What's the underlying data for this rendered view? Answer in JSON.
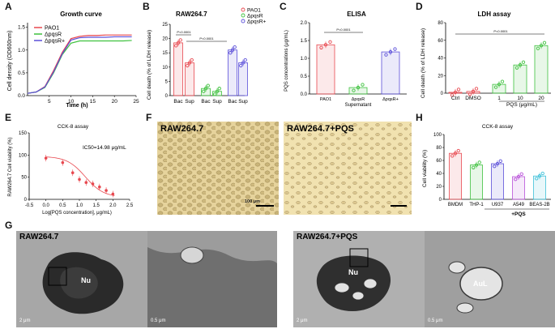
{
  "panels": {
    "A": {
      "letter": "A",
      "title": "Growth curve",
      "ylabel": "Cell density (OD600nm)",
      "xlabel": "Time (h)",
      "legend": [
        "PAO1",
        "ΔpqsR",
        "ΔpqsR+"
      ],
      "xticks": [
        "5",
        "10",
        "15",
        "20",
        "25"
      ],
      "yticks": [
        "0.0",
        "0.5",
        "1.0",
        "1.5"
      ]
    },
    "B": {
      "letter": "B",
      "title": "RAW264.7",
      "ylabel": "Cell death (% of LDH release)",
      "legend": [
        "PAO1",
        "ΔpqsR",
        "ΔpqsR+"
      ],
      "pvalue1": "P<0.0001",
      "pvalue2": "P<0.0001",
      "yticks": [
        "0",
        "5",
        "10",
        "15",
        "20",
        "25"
      ]
    },
    "C": {
      "letter": "C",
      "title": "ELISA",
      "ylabel": "PQS concentrations (μg/mL)",
      "xlabel": "Supernatant",
      "pvalue": "P<0.0001",
      "yticks": [
        "0.0",
        "0.5",
        "1.0",
        "1.5",
        "2.0"
      ]
    },
    "D": {
      "letter": "D",
      "title": "LDH assay",
      "ylabel": "Cell death (% of LDH release)",
      "xlabel": "PQS (μg/mL)",
      "pvalue": "P<0.0001",
      "yticks": [
        "0",
        "20",
        "40",
        "60",
        "80"
      ]
    },
    "E": {
      "letter": "E",
      "title": "CCK-8 assay",
      "ylabel": "RAW264.7 Cell viability (%)",
      "xlabel": "Log[PQS concentration], μg/mL)",
      "annotation": "IC50=14.98 μg/mL",
      "xticks": [
        "-0.5",
        "0.0",
        "0.5",
        "1.0",
        "1.5",
        "2.0",
        "2.5"
      ],
      "yticks": [
        "0",
        "50",
        "100",
        "150"
      ]
    },
    "F": {
      "letter": "F",
      "left_label": "RAW264.7",
      "right_label": "RAW264.7+PQS",
      "scale": "100 μm"
    },
    "H": {
      "letter": "H",
      "title": "CCK-8 assay",
      "ylabel": "Cell viability (%)",
      "xlabel": "+PQS",
      "yticks": [
        "0",
        "20",
        "40",
        "60",
        "80",
        "100"
      ]
    },
    "G": {
      "letter": "G",
      "left_label": "RAW264.7",
      "right_label": "RAW264.7+PQS",
      "nu": "Nu",
      "aul": "AuL",
      "scale_a": "2 μm",
      "scale_b": "0.5 μm"
    }
  },
  "chart_data": [
    {
      "type": "line",
      "panel": "A",
      "title": "Growth curve",
      "xlabel": "Time (h)",
      "ylabel": "Cell density (OD600nm)",
      "xlim": [
        0,
        25
      ],
      "ylim": [
        0,
        1.6
      ],
      "series": [
        {
          "name": "PAO1",
          "color": "#e8484f",
          "x": [
            0,
            2,
            4,
            6,
            8,
            10,
            12,
            14,
            16,
            18,
            20,
            22,
            24
          ],
          "values": [
            0.05,
            0.08,
            0.2,
            0.55,
            0.95,
            1.25,
            1.3,
            1.32,
            1.32,
            1.33,
            1.33,
            1.33,
            1.33
          ]
        },
        {
          "name": "ΔpqsR",
          "color": "#3ec13e",
          "x": [
            0,
            2,
            4,
            6,
            8,
            10,
            12,
            14,
            16,
            18,
            20,
            22,
            24
          ],
          "values": [
            0.05,
            0.08,
            0.18,
            0.5,
            0.9,
            1.15,
            1.2,
            1.2,
            1.2,
            1.2,
            1.2,
            1.2,
            1.21
          ]
        },
        {
          "name": "ΔpqsR+",
          "color": "#5b4fd9",
          "x": [
            0,
            2,
            4,
            6,
            8,
            10,
            12,
            14,
            16,
            18,
            20,
            22,
            24
          ],
          "values": [
            0.05,
            0.08,
            0.19,
            0.52,
            0.92,
            1.22,
            1.27,
            1.28,
            1.28,
            1.28,
            1.29,
            1.29,
            1.29
          ]
        }
      ]
    },
    {
      "type": "bar",
      "panel": "B",
      "title": "RAW264.7",
      "ylabel": "Cell death (% of LDH release)",
      "ylim": [
        0,
        25
      ],
      "categories": [
        "Bac",
        "Sup",
        "Bac",
        "Sup",
        "Bac",
        "Sup"
      ],
      "colors": [
        "#e8484f",
        "#e8484f",
        "#3ec13e",
        "#3ec13e",
        "#5b4fd9",
        "#5b4fd9"
      ],
      "values": [
        18.5,
        11.5,
        2.5,
        1.5,
        16,
        11.5
      ]
    },
    {
      "type": "bar",
      "panel": "C",
      "title": "ELISA",
      "xlabel": "Supernatant",
      "ylabel": "PQS concentrations (μg/mL)",
      "ylim": [
        0,
        2.0
      ],
      "categories": [
        "PAO1",
        "ΔpqsR",
        "ΔpqsR+"
      ],
      "colors": [
        "#e8484f",
        "#3ec13e",
        "#5b4fd9"
      ],
      "values": [
        1.38,
        0.18,
        1.18
      ]
    },
    {
      "type": "bar",
      "panel": "D",
      "title": "LDH assay",
      "xlabel": "PQS (μg/mL)",
      "ylabel": "Cell death (% of LDH release)",
      "ylim": [
        0,
        80
      ],
      "categories": [
        "Ctrl",
        "DMSO",
        "1",
        "10",
        "20"
      ],
      "colors": [
        "#e8484f",
        "#e8484f",
        "#3ec13e",
        "#3ec13e",
        "#3ec13e"
      ],
      "values": [
        1,
        2,
        10,
        32,
        54
      ]
    },
    {
      "type": "scatter",
      "panel": "E",
      "title": "CCK-8 assay",
      "xlabel": "Log[PQS concentration], μg/mL)",
      "ylabel": "RAW264.7 Cell viability (%)",
      "xlim": [
        -0.5,
        2.5
      ],
      "ylim": [
        0,
        150
      ],
      "x": [
        0.0,
        0.5,
        0.8,
        1.0,
        1.2,
        1.4,
        1.6,
        1.8,
        2.0
      ],
      "values": [
        93,
        83,
        60,
        45,
        38,
        35,
        28,
        20,
        12
      ]
    },
    {
      "type": "bar",
      "panel": "H",
      "title": "CCK-8 assay",
      "xlabel": "+PQS",
      "ylabel": "Cell viability (%)",
      "ylim": [
        0,
        100
      ],
      "categories": [
        "BMDM",
        "THP-1",
        "U937",
        "A549",
        "BEAS-2B"
      ],
      "colors": [
        "#e8484f",
        "#3ec13e",
        "#5b4fd9",
        "#b84fd9",
        "#3ec1d9"
      ],
      "values": [
        71,
        53,
        55,
        35,
        36
      ]
    }
  ]
}
